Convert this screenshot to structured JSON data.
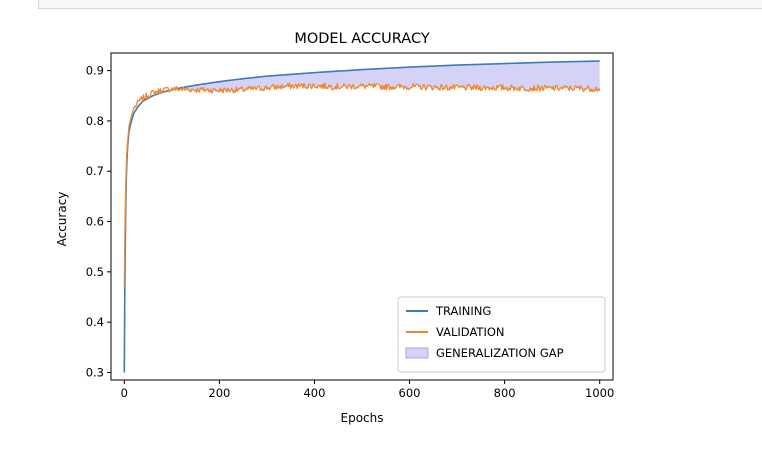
{
  "chart_data": {
    "type": "line",
    "title": "MODEL ACCURACY",
    "xlabel": "Epochs",
    "ylabel": "Accuracy",
    "xlim": [
      -28,
      1028
    ],
    "ylim": [
      0.285,
      0.935
    ],
    "xticks": [
      0,
      200,
      400,
      600,
      800,
      1000
    ],
    "yticks": [
      0.3,
      0.4,
      0.5,
      0.6,
      0.7,
      0.8,
      0.9
    ],
    "xtick_labels": [
      "0",
      "200",
      "400",
      "600",
      "800",
      "1000"
    ],
    "ytick_labels": [
      "0.3",
      "0.4",
      "0.5",
      "0.6",
      "0.7",
      "0.8",
      "0.9"
    ],
    "grid": false,
    "legend_position": "bottom-right",
    "series": [
      {
        "name": "TRAINING",
        "color": "#3a7bb8",
        "x": [
          0,
          1,
          2,
          3,
          4,
          5,
          7,
          10,
          15,
          20,
          30,
          40,
          50,
          60,
          80,
          100,
          120,
          150,
          200,
          250,
          300,
          400,
          500,
          600,
          700,
          800,
          900,
          1000
        ],
        "values": [
          0.3,
          0.46,
          0.56,
          0.63,
          0.68,
          0.71,
          0.75,
          0.78,
          0.8,
          0.815,
          0.83,
          0.84,
          0.845,
          0.85,
          0.857,
          0.862,
          0.866,
          0.871,
          0.878,
          0.884,
          0.889,
          0.896,
          0.902,
          0.907,
          0.911,
          0.914,
          0.917,
          0.919
        ]
      },
      {
        "name": "VALIDATION",
        "color": "#f0872e",
        "x": [
          0,
          1,
          2,
          3,
          4,
          5,
          7,
          10,
          15,
          20,
          30,
          40,
          50,
          60,
          80,
          100,
          120,
          150,
          200,
          250,
          300,
          350,
          400,
          450,
          500,
          550,
          600,
          650,
          700,
          750,
          800,
          850,
          900,
          950,
          1000
        ],
        "values": [
          0.47,
          0.56,
          0.62,
          0.67,
          0.7,
          0.73,
          0.76,
          0.79,
          0.81,
          0.825,
          0.838,
          0.846,
          0.851,
          0.856,
          0.861,
          0.864,
          0.863,
          0.862,
          0.861,
          0.862,
          0.866,
          0.869,
          0.87,
          0.868,
          0.869,
          0.868,
          0.868,
          0.867,
          0.866,
          0.866,
          0.866,
          0.865,
          0.865,
          0.865,
          0.864
        ]
      }
    ],
    "fill_between": {
      "name": "GENERALIZATION GAP",
      "color": "#aaa6f0"
    }
  }
}
